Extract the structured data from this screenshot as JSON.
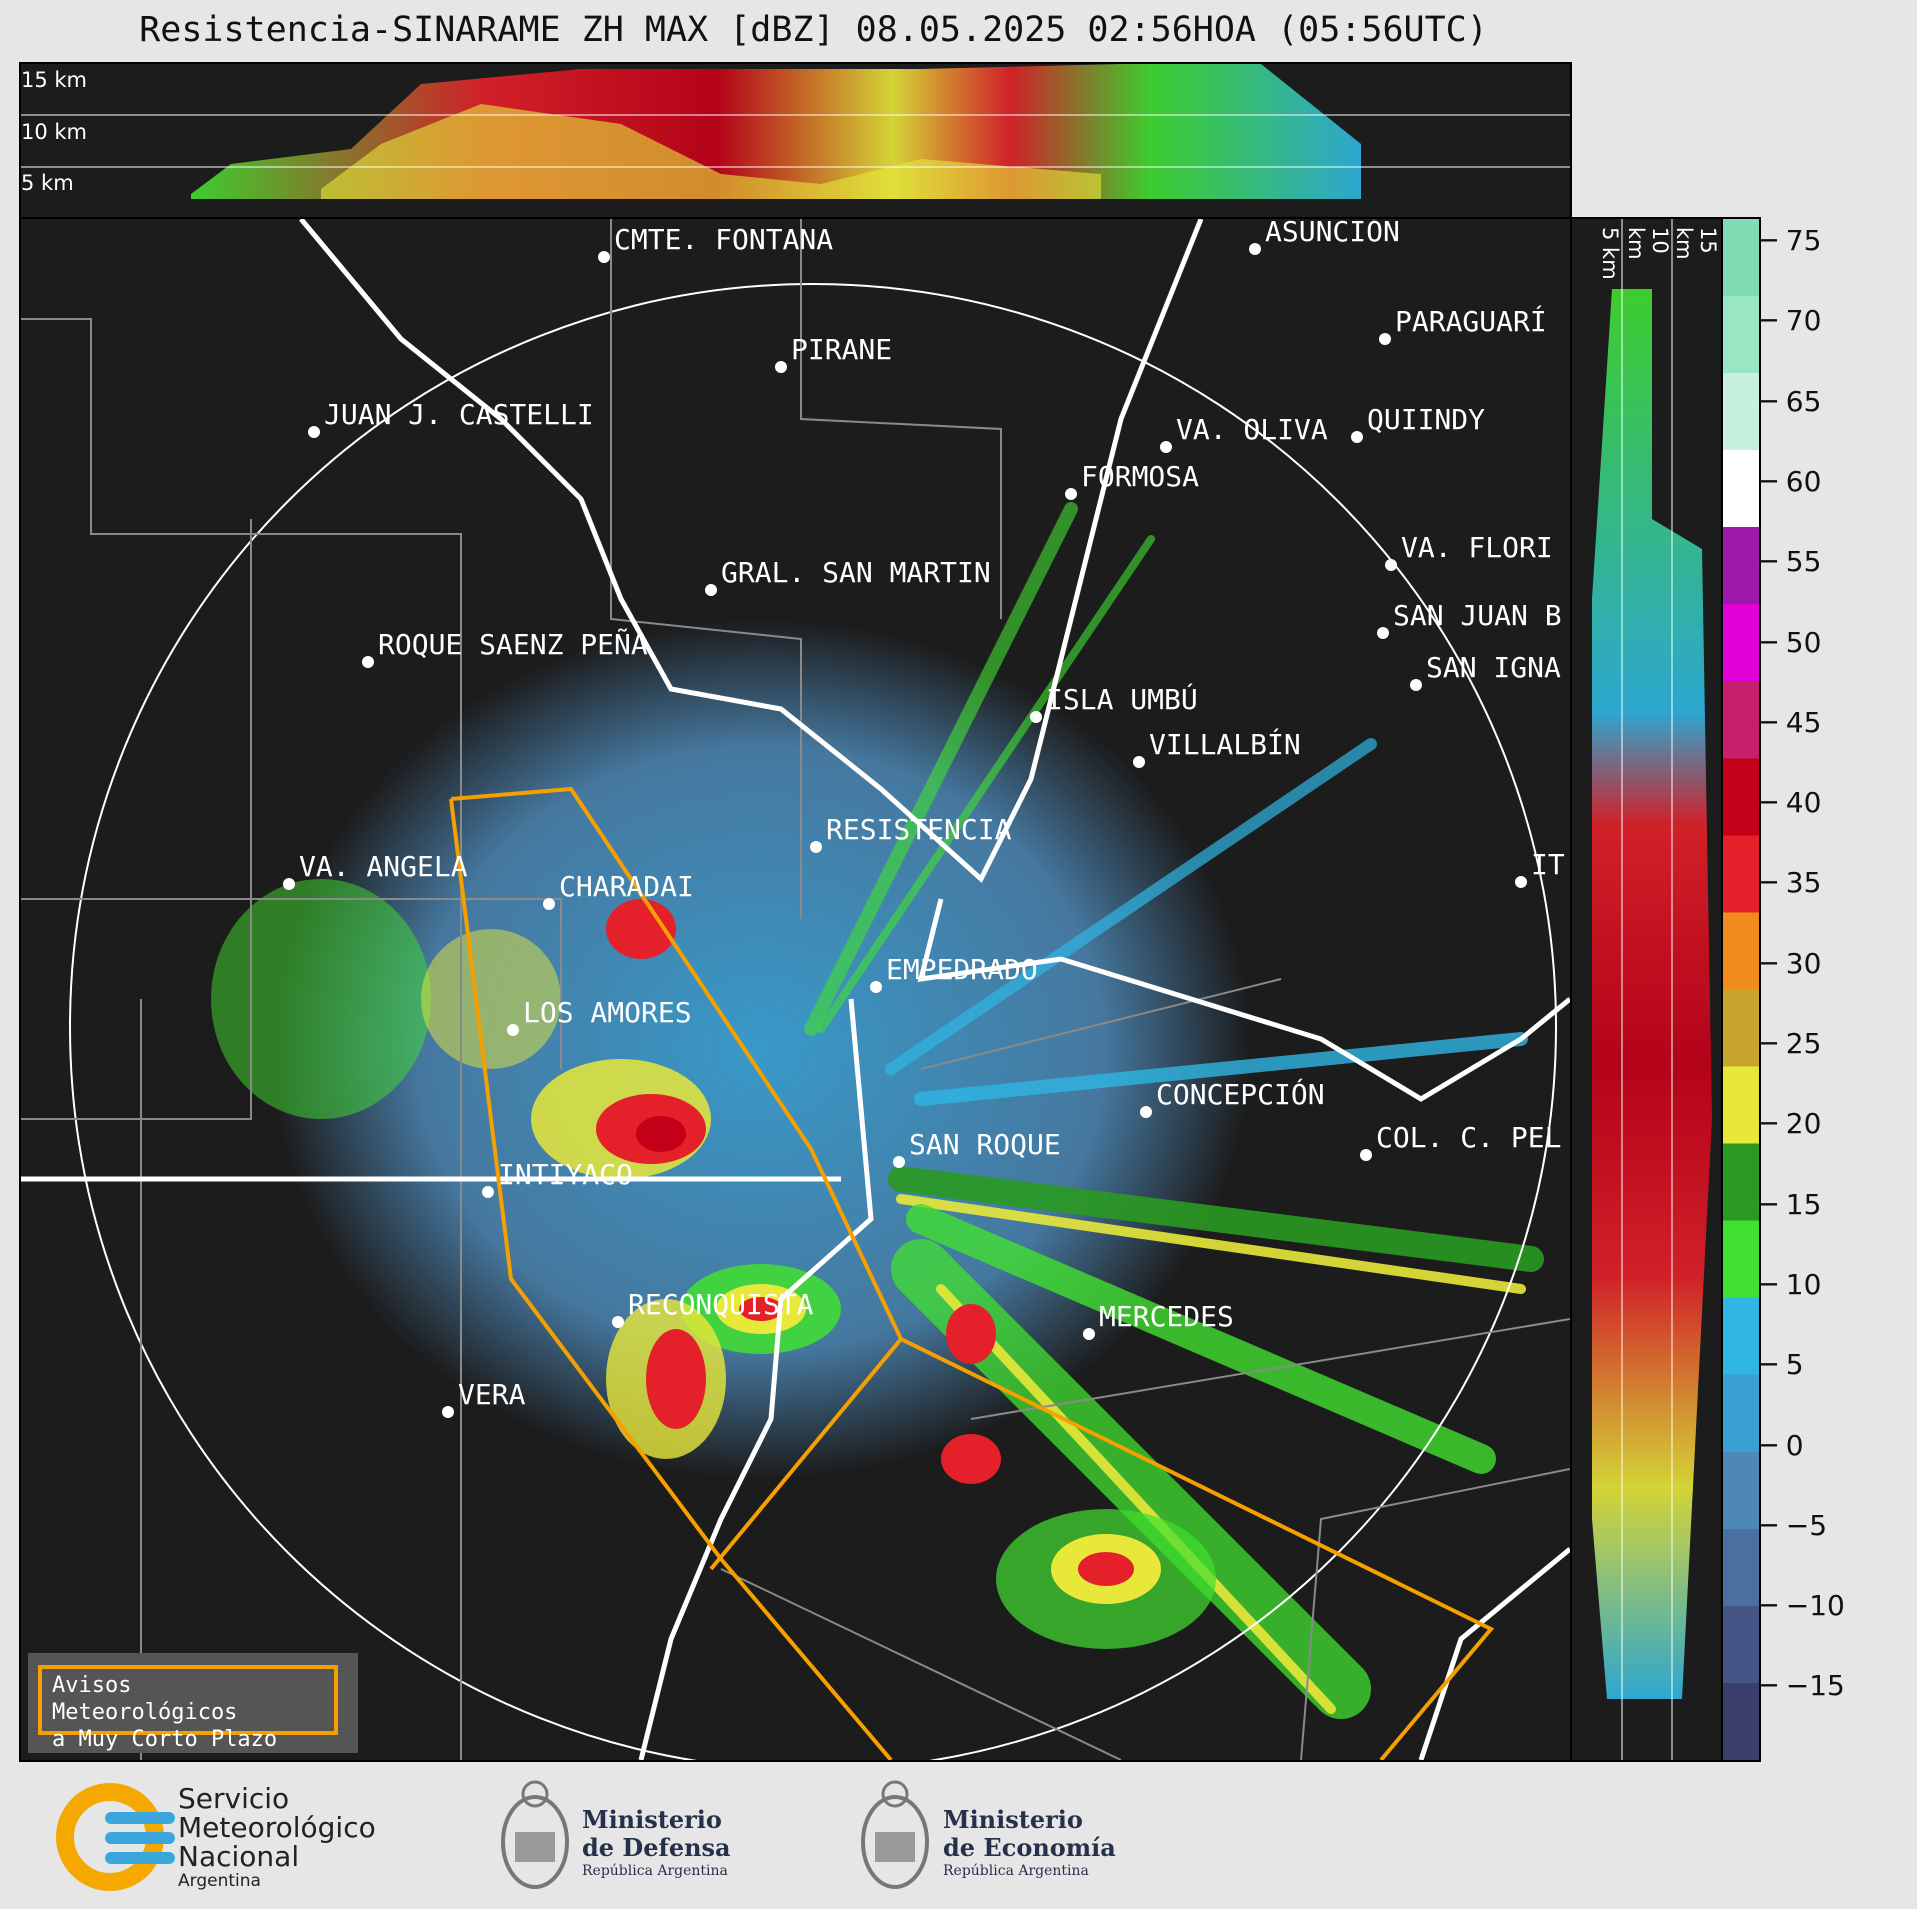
{
  "header": {
    "title": "Resistencia-SINARAME ZH MAX [dBZ] 08.05.2025 02:56HOA (05:56UTC)"
  },
  "top_cross_section": {
    "levels": [
      "15 km",
      "10 km",
      "5 km"
    ]
  },
  "side_cross_section": {
    "levels": [
      "5 km",
      "10 km",
      "15 km"
    ]
  },
  "colorbar": {
    "unit": "dBZ",
    "ticks": [
      "75",
      "70",
      "65",
      "60",
      "55",
      "50",
      "45",
      "40",
      "35",
      "30",
      "25",
      "20",
      "15",
      "10",
      "5",
      "0",
      "−5",
      "−10",
      "−15"
    ],
    "colors": [
      "#3b3f6c",
      "#445586",
      "#4a6fa0",
      "#4d88b6",
      "#3aa0d2",
      "#2fb6e3",
      "#41e030",
      "#2a9a22",
      "#e8e83a",
      "#c8a52d",
      "#f08b1e",
      "#e4212a",
      "#c40018",
      "#c81e6e",
      "#e000d8",
      "#9b18a8",
      "#ffffff",
      "#c8f0df",
      "#9ae6c4",
      "#7fdcb5"
    ]
  },
  "map": {
    "cities": [
      {
        "name": "CMTE. FONTANA"
      },
      {
        "name": "ASUNCIÓN"
      },
      {
        "name": "PARAGUARÍ"
      },
      {
        "name": "PIRANE"
      },
      {
        "name": "JUAN J. CASTELLI"
      },
      {
        "name": "VA. OLIVA"
      },
      {
        "name": "QUIINDY"
      },
      {
        "name": "FORMOSA"
      },
      {
        "name": "VA. FLORI"
      },
      {
        "name": "GRAL. SAN MARTIN"
      },
      {
        "name": "SAN JUAN B"
      },
      {
        "name": "ROQUE SAENZ PEÑA"
      },
      {
        "name": "SAN IGNA"
      },
      {
        "name": "ISLA UMBÚ"
      },
      {
        "name": "VILLALBÍN"
      },
      {
        "name": "RESISTENCIA"
      },
      {
        "name": "VA. ANGELA"
      },
      {
        "name": "IT"
      },
      {
        "name": "CHARADAI"
      },
      {
        "name": "EMPEDRADO"
      },
      {
        "name": "LOS AMORES"
      },
      {
        "name": "CONCEPCIÓN"
      },
      {
        "name": "SAN ROQUE"
      },
      {
        "name": "COL. C. PEL"
      },
      {
        "name": "INTIYACO"
      },
      {
        "name": "RECONQUISTA"
      },
      {
        "name": "MERCEDES"
      },
      {
        "name": "VERA"
      }
    ]
  },
  "warning": {
    "line1": "Avisos Meteorológicos",
    "line2": "a Muy Corto Plazo"
  },
  "footer": {
    "smn": {
      "line1": "Servicio",
      "line2": "Meteorológico",
      "line3": "Nacional",
      "line4": "Argentina"
    },
    "defensa": {
      "line1": "Ministerio",
      "line2": "de Defensa",
      "line3": "República Argentina"
    },
    "economia": {
      "line1": "Ministerio",
      "line2": "de Economía",
      "line3": "República Argentina"
    }
  }
}
